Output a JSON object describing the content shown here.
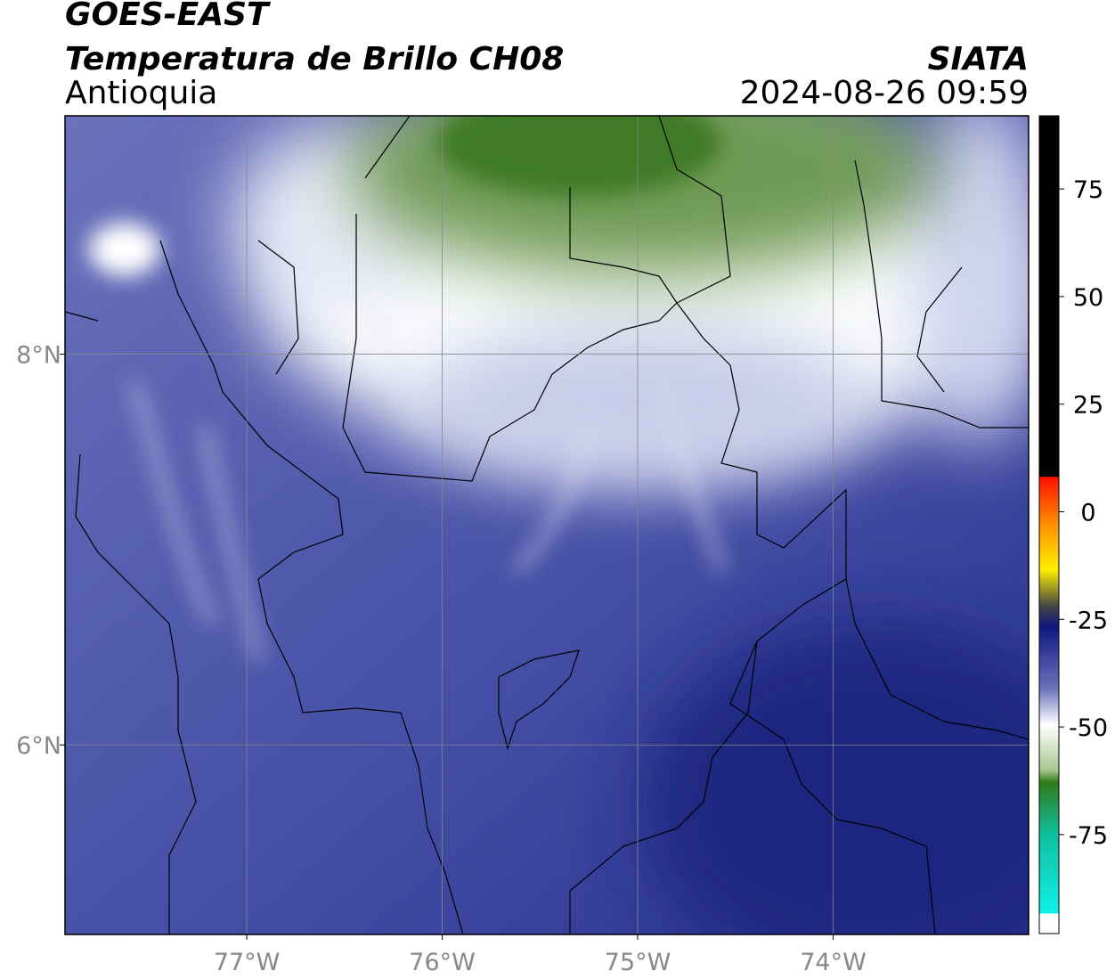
{
  "chart_data": {
    "type": "map",
    "title": "GOES-EAST",
    "subtitle": "Temperatura de Brillo CH08",
    "annotations": [
      "Antioquia",
      "SIATA",
      "2024-08-26 09:59"
    ],
    "xlim": [
      -77.93,
      -73.0
    ],
    "ylim": [
      5.03,
      9.22
    ],
    "xticks": [
      {
        "value": -77,
        "label": "77°W"
      },
      {
        "value": -76,
        "label": "76°W"
      },
      {
        "value": -75,
        "label": "75°W"
      },
      {
        "value": -74,
        "label": "74°W"
      }
    ],
    "yticks": [
      {
        "value": 6,
        "label": "6°N"
      },
      {
        "value": 8,
        "label": "8°N"
      }
    ],
    "grid": true,
    "colorbar": {
      "lim": [
        -98,
        92
      ],
      "ticks": [
        -75,
        -50,
        -25,
        0,
        25,
        50,
        75
      ]
    }
  }
}
